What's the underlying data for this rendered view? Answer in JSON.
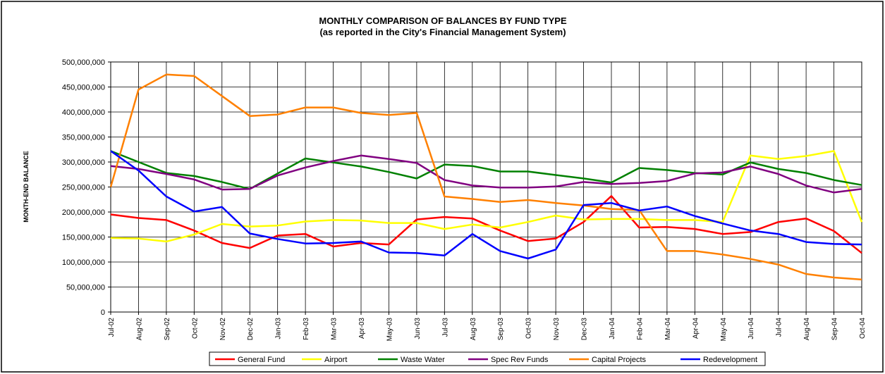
{
  "chart_data": {
    "type": "line",
    "title": "MONTHLY COMPARISON OF BALANCES BY FUND TYPE",
    "subtitle": "(as reported in the City's Financial Management System)",
    "y_label": "MONTH-END BALANCE",
    "categories": [
      "Jul-02",
      "Aug-02",
      "Sep-02",
      "Oct-02",
      "Nov-02",
      "Dec-02",
      "Jan-03",
      "Feb-03",
      "Mar-03",
      "Apr-03",
      "May-03",
      "Jun-03",
      "Jul-03",
      "Aug-03",
      "Sep-03",
      "Oct-03",
      "Nov-03",
      "Dec-03",
      "Jan-04",
      "Feb-04",
      "Mar-04",
      "Apr-04",
      "May-04",
      "Jun-04",
      "Jul-04",
      "Aug-04",
      "Sep-04",
      "Oct-04"
    ],
    "series": [
      {
        "name": "General Fund",
        "color": "#ff0000",
        "values": [
          195000000,
          188000000,
          184000000,
          163000000,
          138000000,
          128000000,
          153000000,
          156000000,
          131000000,
          138000000,
          135000000,
          185000000,
          190000000,
          187000000,
          163000000,
          142000000,
          147000000,
          180000000,
          232000000,
          169000000,
          170000000,
          166000000,
          156000000,
          160000000,
          180000000,
          187000000,
          162000000,
          118000000
        ]
      },
      {
        "name": "Airport",
        "color": "#ffff00",
        "values": [
          148000000,
          147000000,
          141000000,
          155000000,
          176000000,
          171000000,
          173000000,
          181000000,
          184000000,
          183000000,
          178000000,
          178000000,
          166000000,
          175000000,
          169000000,
          180000000,
          193000000,
          185000000,
          186000000,
          186000000,
          184000000,
          184000000,
          180000000,
          313000000,
          306000000,
          312000000,
          322000000,
          180000000
        ]
      },
      {
        "name": "Waste Water",
        "color": "#008000",
        "values": [
          322000000,
          300000000,
          278000000,
          272000000,
          260000000,
          246000000,
          277000000,
          307000000,
          299000000,
          291000000,
          280000000,
          267000000,
          295000000,
          292000000,
          281000000,
          281000000,
          274000000,
          267000000,
          259000000,
          288000000,
          284000000,
          278000000,
          275000000,
          299000000,
          286000000,
          278000000,
          264000000,
          254000000
        ]
      },
      {
        "name": "Spec Rev Funds",
        "color": "#800080",
        "values": [
          292000000,
          286000000,
          276000000,
          265000000,
          245000000,
          246000000,
          273000000,
          289000000,
          302000000,
          313000000,
          306000000,
          298000000,
          264000000,
          253000000,
          249000000,
          249000000,
          251000000,
          260000000,
          256000000,
          258000000,
          262000000,
          277000000,
          279000000,
          291000000,
          276000000,
          253000000,
          239000000,
          246000000
        ]
      },
      {
        "name": "Capital Projects",
        "color": "#ff8000",
        "values": [
          250000000,
          445000000,
          475000000,
          472000000,
          432000000,
          392000000,
          395000000,
          409000000,
          409000000,
          398000000,
          394000000,
          398000000,
          231000000,
          226000000,
          220000000,
          224000000,
          218000000,
          213000000,
          206000000,
          204000000,
          122000000,
          122000000,
          115000000,
          106000000,
          95000000,
          76000000,
          69000000,
          65000000
        ]
      },
      {
        "name": "Redevelopment",
        "color": "#0000ff",
        "values": [
          322000000,
          283000000,
          231000000,
          201000000,
          210000000,
          157000000,
          146000000,
          137000000,
          138000000,
          141000000,
          119000000,
          118000000,
          113000000,
          156000000,
          122000000,
          107000000,
          125000000,
          214000000,
          218000000,
          203000000,
          211000000,
          192000000,
          177000000,
          163000000,
          156000000,
          140000000,
          136000000,
          135000000
        ]
      }
    ],
    "ylim": [
      0,
      500000000
    ],
    "yticks": [
      0,
      {
        "value": 50000000,
        "label": "50,000,000"
      },
      {
        "value": 100000000,
        "label": "100,000,000"
      },
      {
        "value": 150000000,
        "label": "150,000,000"
      },
      {
        "value": 200000000,
        "label": "200,000,000"
      },
      {
        "value": 250000000,
        "label": "250,000,000"
      },
      {
        "value": 300000000,
        "label": "300,000,000"
      },
      {
        "value": 350000000,
        "label": "350,000,000"
      },
      {
        "value": 400000000,
        "label": "400,000,000"
      },
      {
        "value": 450000000,
        "label": "450,000,000"
      },
      {
        "value": 500000000,
        "label": "500,000,000"
      }
    ],
    "grid": true,
    "legend": "bottom"
  }
}
